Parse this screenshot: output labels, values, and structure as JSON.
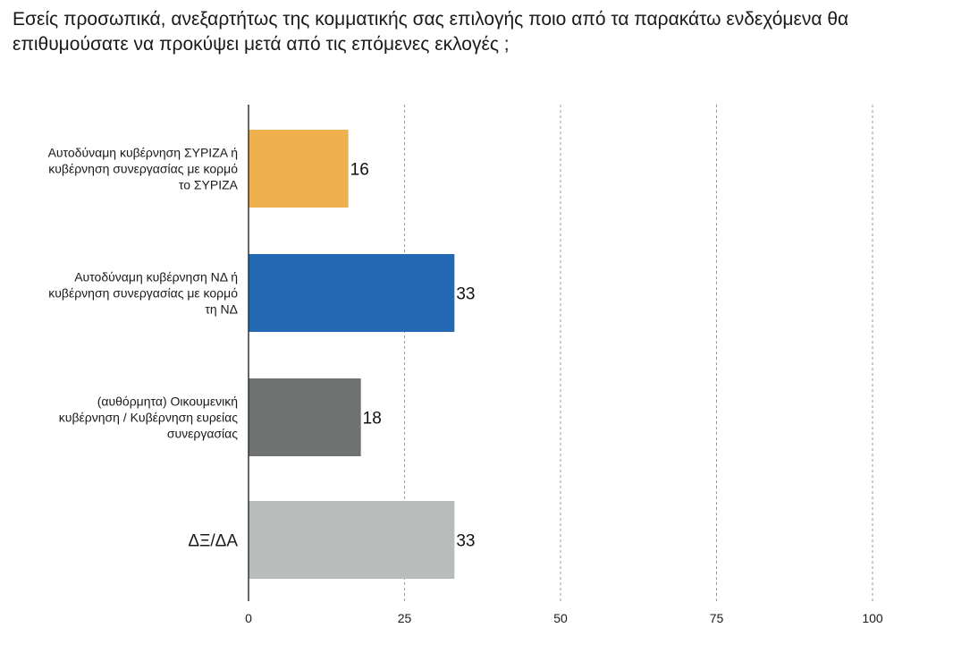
{
  "chart_data": {
    "type": "bar",
    "orientation": "horizontal",
    "title": "Εσείς προσωπικά, ανεξαρτήτως της κομματικής σας επιλογής ποιο από τα παρακάτω ενδεχόμενα θα επιθυμούσατε να προκύψει μετά από τις επόμενες εκλογές ;",
    "categories": [
      [
        "Αυτοδύναμη κυβέρνηση ΣΥΡΙΖΑ ή",
        "κυβέρνηση συνεργασίας με κορμό",
        "το ΣΥΡΙΖΑ"
      ],
      [
        "Αυτοδύναμη κυβέρνηση ΝΔ ή",
        "κυβέρνηση συνεργασίας με κορμό",
        "τη ΝΔ"
      ],
      [
        "(αυθόρμητα) Οικουμενική",
        "κυβέρνηση / Κυβέρνηση ευρείας",
        "συνεργασίας"
      ],
      [
        "ΔΞ/ΔΑ"
      ]
    ],
    "values": [
      16,
      33,
      18,
      33
    ],
    "value_labels": [
      "16",
      "33",
      "18",
      "33"
    ],
    "colors": [
      "#EFB14D",
      "#2369B3",
      "#6E7270",
      "#B8BCBB"
    ],
    "xlim": [
      0,
      100
    ],
    "ticks": [
      0,
      25,
      50,
      75,
      100
    ],
    "tick_labels": [
      "0",
      "25",
      "50",
      "75",
      "100"
    ],
    "grid": "vertical-dashed",
    "legend": "none"
  }
}
